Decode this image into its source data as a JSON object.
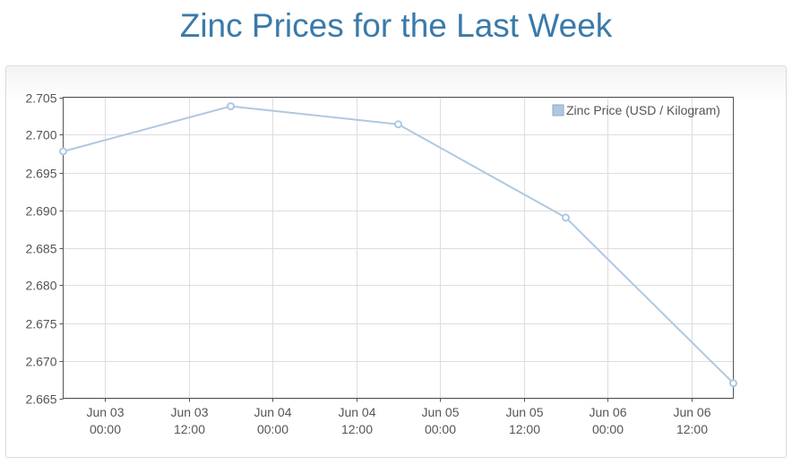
{
  "page": {
    "title": "Zinc Prices for the Last Week"
  },
  "chart_data": {
    "type": "line",
    "title": "Zinc Prices for the Last Week",
    "xlabel": "",
    "ylabel": "",
    "x_ticks": [
      {
        "t": "2015-06-03T00:00",
        "line1": "Jun 03",
        "line2": "00:00"
      },
      {
        "t": "2015-06-03T12:00",
        "line1": "Jun 03",
        "line2": "12:00"
      },
      {
        "t": "2015-06-04T00:00",
        "line1": "Jun 04",
        "line2": "00:00"
      },
      {
        "t": "2015-06-04T12:00",
        "line1": "Jun 04",
        "line2": "12:00"
      },
      {
        "t": "2015-06-05T00:00",
        "line1": "Jun 05",
        "line2": "00:00"
      },
      {
        "t": "2015-06-05T12:00",
        "line1": "Jun 05",
        "line2": "12:00"
      },
      {
        "t": "2015-06-06T00:00",
        "line1": "Jun 06",
        "line2": "00:00"
      },
      {
        "t": "2015-06-06T12:00",
        "line1": "Jun 06",
        "line2": "12:00"
      }
    ],
    "y_ticks": [
      2.665,
      2.67,
      2.675,
      2.68,
      2.685,
      2.69,
      2.695,
      2.7,
      2.705
    ],
    "ylim": [
      2.665,
      2.705
    ],
    "xlim": [
      "2015-06-02T18:00",
      "2015-06-06T18:00"
    ],
    "grid": true,
    "legend_position": "top-right",
    "series": [
      {
        "name": "Zinc Price (USD / Kilogram)",
        "color": "#afc8e0",
        "points": [
          {
            "x": "2015-06-02T18:00",
            "y": 2.6978
          },
          {
            "x": "2015-06-03T18:00",
            "y": 2.7038
          },
          {
            "x": "2015-06-04T18:00",
            "y": 2.7014
          },
          {
            "x": "2015-06-05T18:00",
            "y": 2.689
          },
          {
            "x": "2015-06-06T18:00",
            "y": 2.667
          }
        ]
      }
    ]
  }
}
